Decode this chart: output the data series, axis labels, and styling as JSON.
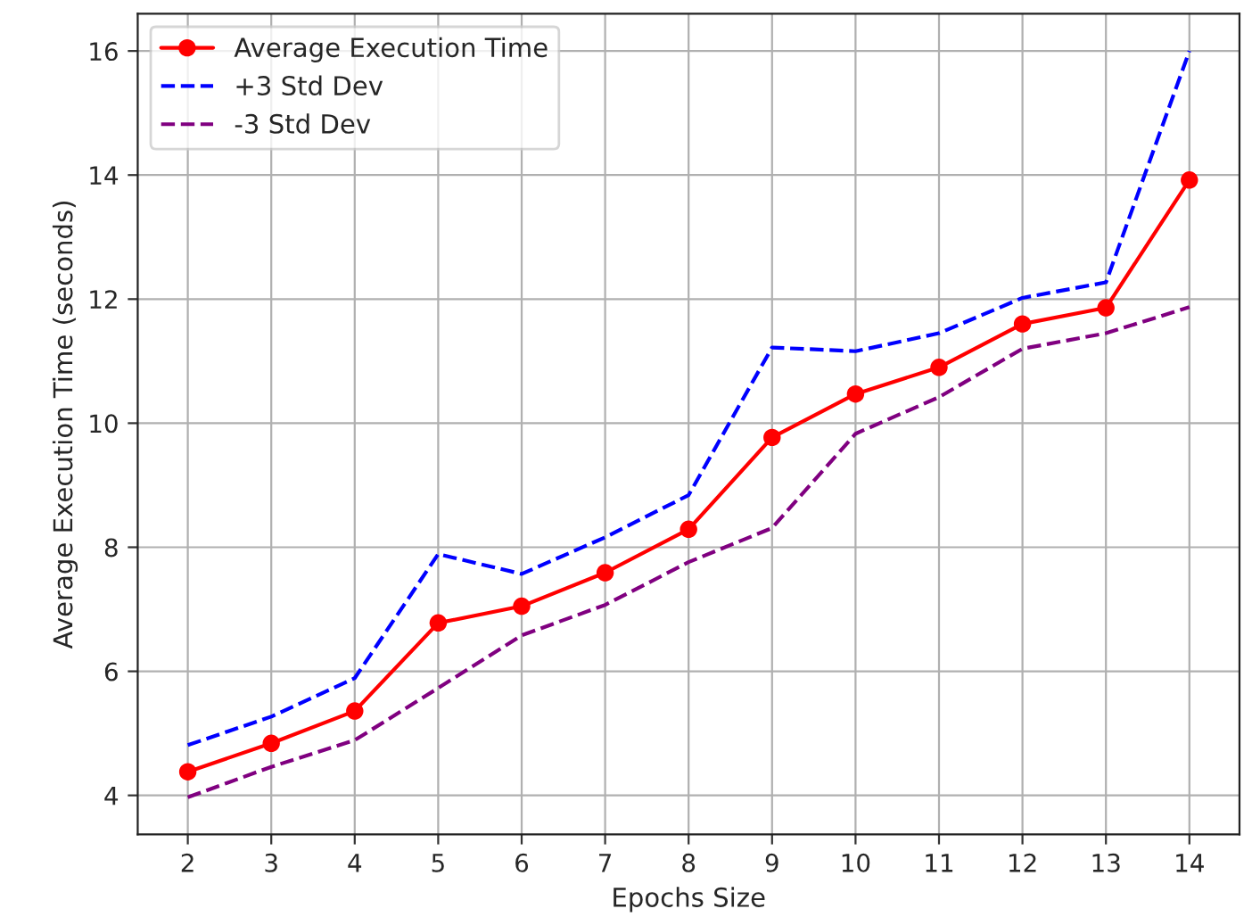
{
  "chart_data": {
    "type": "line",
    "xlabel": "Epochs Size",
    "ylabel": "Average Execution Time (seconds)",
    "x": [
      2,
      3,
      4,
      5,
      6,
      7,
      8,
      9,
      10,
      11,
      12,
      13,
      14
    ],
    "series": [
      {
        "name": "Average Execution Time",
        "color": "#ff0000",
        "marker": "circle",
        "line_style": "solid",
        "values": [
          4.38,
          4.84,
          5.36,
          6.78,
          7.05,
          7.59,
          8.29,
          9.77,
          10.47,
          10.9,
          11.6,
          11.86,
          13.92
        ]
      },
      {
        "name": "+3 Std Dev",
        "color": "#0000ff",
        "marker": "none",
        "line_style": "dashed",
        "values": [
          4.81,
          5.27,
          5.89,
          7.89,
          7.57,
          8.16,
          8.84,
          11.22,
          11.16,
          11.45,
          12.02,
          12.27,
          16.0
        ]
      },
      {
        "name": "-3 Std Dev",
        "color": "#800080",
        "marker": "none",
        "line_style": "dashed",
        "values": [
          3.97,
          4.46,
          4.89,
          5.73,
          6.58,
          7.07,
          7.76,
          8.31,
          9.83,
          10.42,
          11.2,
          11.45,
          11.87
        ]
      }
    ],
    "xlim": [
      1.4,
      14.6
    ],
    "xticks": [
      2,
      3,
      4,
      5,
      6,
      7,
      8,
      9,
      10,
      11,
      12,
      13,
      14
    ],
    "ylim": [
      3.37,
      16.6
    ],
    "yticks": [
      4,
      6,
      8,
      10,
      12,
      14,
      16
    ],
    "grid": true,
    "legend": "top left"
  }
}
